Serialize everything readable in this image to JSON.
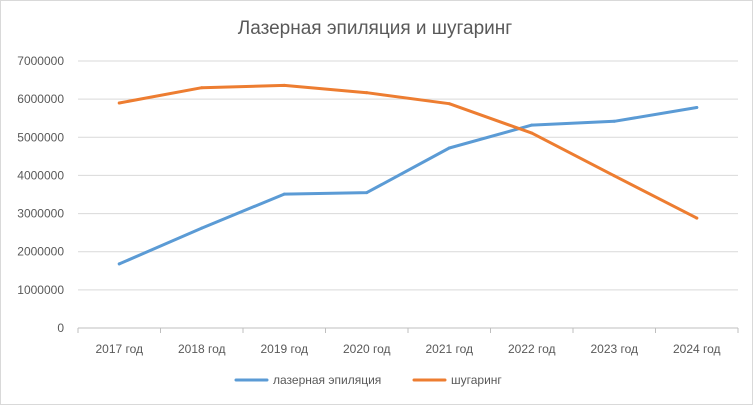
{
  "chart_data": {
    "type": "line",
    "title": "Лазерная эпиляция и шугаринг",
    "categories": [
      "2017 год",
      "2018 год",
      "2019 год",
      "2020 год",
      "2021 год",
      "2022 год",
      "2023 год",
      "2024 год"
    ],
    "series": [
      {
        "name": "лазерная эпиляция",
        "color": "#5b9bd5",
        "values": [
          1680000,
          2620000,
          3510000,
          3550000,
          4720000,
          5320000,
          5420000,
          5780000
        ]
      },
      {
        "name": "шугаринг",
        "color": "#ed7d31",
        "values": [
          5900000,
          6300000,
          6360000,
          6170000,
          5880000,
          5110000,
          3990000,
          2880000
        ]
      }
    ],
    "yticks": [
      "0",
      "1000000",
      "2000000",
      "3000000",
      "4000000",
      "5000000",
      "6000000",
      "7000000"
    ],
    "ylim": [
      0,
      7000000
    ],
    "grid": true,
    "gridline_color": "#d9d9d9",
    "axis_line_color": "#bfbfbf",
    "legend_position": "bottom"
  }
}
